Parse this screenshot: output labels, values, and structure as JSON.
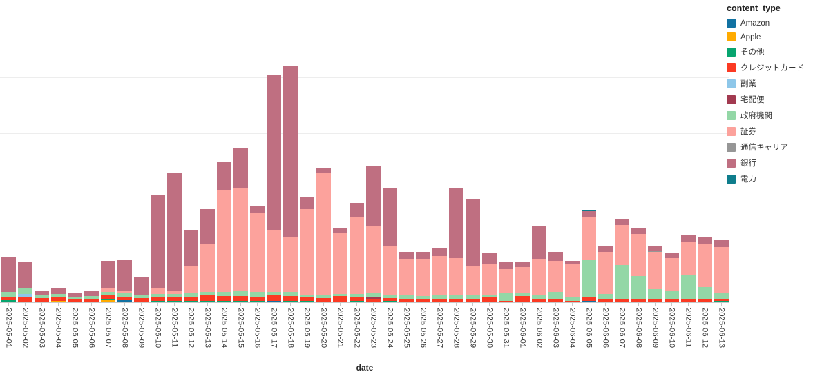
{
  "axis": {
    "x_title": "date"
  },
  "legend": {
    "title": "content_type"
  },
  "chart_data": {
    "type": "bar",
    "stacked": true,
    "title": "",
    "xlabel": "date",
    "ylabel": "",
    "legend_title": "content_type",
    "legend_position": "right",
    "grid": true,
    "y_axis_labels_visible": false,
    "ylim": [
      0,
      537
    ],
    "y_gridlines": [
      100,
      200,
      300,
      400,
      500
    ],
    "x": [
      "2025-05-01",
      "2025-05-02",
      "2025-05-03",
      "2025-05-04",
      "2025-05-05",
      "2025-05-06",
      "2025-05-07",
      "2025-05-08",
      "2025-05-09",
      "2025-05-10",
      "2025-05-11",
      "2025-05-12",
      "2025-05-13",
      "2025-05-14",
      "2025-05-15",
      "2025-05-16",
      "2025-05-17",
      "2025-05-18",
      "2025-05-19",
      "2025-05-20",
      "2025-05-21",
      "2025-05-22",
      "2025-05-23",
      "2025-05-24",
      "2025-05-25",
      "2025-05-26",
      "2025-05-27",
      "2025-05-28",
      "2025-05-29",
      "2025-05-30",
      "2025-05-31",
      "2025-06-01",
      "2025-06-02",
      "2025-06-03",
      "2025-06-04",
      "2025-06-05",
      "2025-06-06",
      "2025-06-07",
      "2025-06-08",
      "2025-06-09",
      "2025-06-10",
      "2025-06-11",
      "2025-06-12",
      "2025-06-13"
    ],
    "series": [
      {
        "id": "amazon",
        "name": "Amazon",
        "color": "#1272a2",
        "values": [
          0,
          0,
          0,
          0,
          0,
          0,
          0,
          4,
          0,
          0,
          0,
          0,
          0,
          0,
          0,
          1,
          2,
          0,
          0,
          0,
          0,
          0,
          0,
          0,
          0,
          0,
          0,
          0,
          0,
          0,
          0,
          0,
          0,
          0,
          0,
          2,
          0,
          0,
          0,
          0,
          0,
          0,
          1,
          0
        ]
      },
      {
        "id": "apple",
        "name": "Apple",
        "color": "#ffab00",
        "values": [
          0,
          0,
          0,
          2,
          0,
          0,
          4,
          0,
          0,
          0,
          0,
          0,
          0,
          0,
          0,
          0,
          0,
          0,
          0,
          0,
          0,
          0,
          0,
          0,
          0,
          0,
          0,
          0,
          0,
          0,
          0,
          0,
          0,
          0,
          0,
          0,
          0,
          0,
          0,
          0,
          0,
          0,
          0,
          0
        ]
      },
      {
        "id": "other",
        "name": "その他",
        "color": "#07a56f",
        "values": [
          4,
          0,
          1,
          0,
          0,
          1,
          1,
          0,
          1,
          2,
          2,
          2,
          2,
          2,
          2,
          2,
          0,
          2,
          2,
          0,
          0,
          2,
          0,
          2,
          1,
          0,
          1,
          1,
          1,
          1,
          1,
          0,
          1,
          1,
          1,
          0,
          0,
          1,
          1,
          0,
          1,
          1,
          0,
          2
        ]
      },
      {
        "id": "credit-card",
        "name": "クレジットカード",
        "color": "#fb3a23",
        "values": [
          6,
          10,
          6,
          7,
          5,
          5,
          7,
          5,
          6,
          6,
          7,
          7,
          10,
          9,
          9,
          7,
          10,
          9,
          6,
          7,
          11,
          7,
          6,
          5,
          4,
          5,
          5,
          5,
          5,
          7,
          2,
          11,
          5,
          5,
          2,
          6,
          5,
          5,
          5,
          5,
          4,
          4,
          4,
          4
        ]
      },
      {
        "id": "side-job",
        "name": "副業",
        "color": "#8ec7e9",
        "values": [
          0,
          5,
          0,
          0,
          0,
          0,
          0,
          0,
          0,
          0,
          0,
          0,
          0,
          0,
          0,
          0,
          0,
          0,
          0,
          0,
          0,
          0,
          0,
          0,
          0,
          0,
          0,
          0,
          0,
          0,
          0,
          0,
          0,
          0,
          0,
          0,
          0,
          0,
          0,
          0,
          0,
          0,
          0,
          0
        ]
      },
      {
        "id": "delivery",
        "name": "宅配便",
        "color": "#a23a50",
        "values": [
          0,
          0,
          0,
          0,
          0,
          0,
          0,
          0,
          0,
          0,
          0,
          0,
          0,
          0,
          0,
          0,
          0,
          0,
          0,
          0,
          0,
          0,
          4,
          0,
          0,
          0,
          0,
          0,
          0,
          0,
          0,
          0,
          0,
          0,
          0,
          0,
          0,
          0,
          0,
          0,
          0,
          0,
          0,
          0
        ]
      },
      {
        "id": "government",
        "name": "政府機関",
        "color": "#93d7a6",
        "values": [
          9,
          9,
          6,
          6,
          5,
          5,
          7,
          7,
          7,
          7,
          6,
          7,
          7,
          7,
          9,
          9,
          7,
          7,
          6,
          7,
          4,
          6,
          6,
          5,
          7,
          6,
          6,
          7,
          6,
          4,
          13,
          5,
          6,
          12,
          6,
          67,
          10,
          60,
          41,
          18,
          16,
          44,
          22,
          10
        ]
      },
      {
        "id": "securities",
        "name": "証券",
        "color": "#fca29c",
        "values": [
          0,
          0,
          0,
          0,
          0,
          0,
          7,
          5,
          0,
          9,
          6,
          49,
          85,
          182,
          182,
          140,
          110,
          99,
          151,
          215,
          109,
          137,
          120,
          88,
          65,
          66,
          70,
          66,
          53,
          56,
          43,
          46,
          65,
          56,
          58,
          76,
          74,
          71,
          75,
          67,
          58,
          58,
          76,
          82
        ]
      },
      {
        "id": "telecom",
        "name": "通信キャリア",
        "color": "#969696",
        "values": [
          0,
          0,
          0,
          0,
          0,
          0,
          0,
          0,
          0,
          0,
          0,
          0,
          0,
          0,
          0,
          0,
          0,
          0,
          0,
          0,
          0,
          0,
          0,
          0,
          0,
          0,
          0,
          0,
          0,
          0,
          0,
          0,
          0,
          0,
          0,
          0,
          0,
          0,
          0,
          1,
          0,
          0,
          0,
          0
        ]
      },
      {
        "id": "bank",
        "name": "銀行",
        "color": "#bf6f81",
        "values": [
          61,
          48,
          7,
          10,
          6,
          9,
          48,
          54,
          31,
          166,
          210,
          63,
          62,
          49,
          72,
          12,
          274,
          303,
          23,
          9,
          8,
          25,
          107,
          102,
          13,
          12,
          15,
          124,
          118,
          20,
          12,
          10,
          59,
          15,
          7,
          11,
          10,
          10,
          10,
          9,
          9,
          12,
          12,
          12
        ]
      },
      {
        "id": "power",
        "name": "電力",
        "color": "#0e7d8c",
        "values": [
          0,
          0,
          0,
          0,
          0,
          0,
          0,
          0,
          0,
          0,
          0,
          0,
          0,
          0,
          0,
          0,
          0,
          0,
          0,
          0,
          0,
          0,
          0,
          0,
          0,
          0,
          0,
          0,
          0,
          0,
          0,
          0,
          0,
          0,
          0,
          2,
          0,
          0,
          0,
          0,
          0,
          0,
          0,
          0
        ]
      }
    ]
  }
}
